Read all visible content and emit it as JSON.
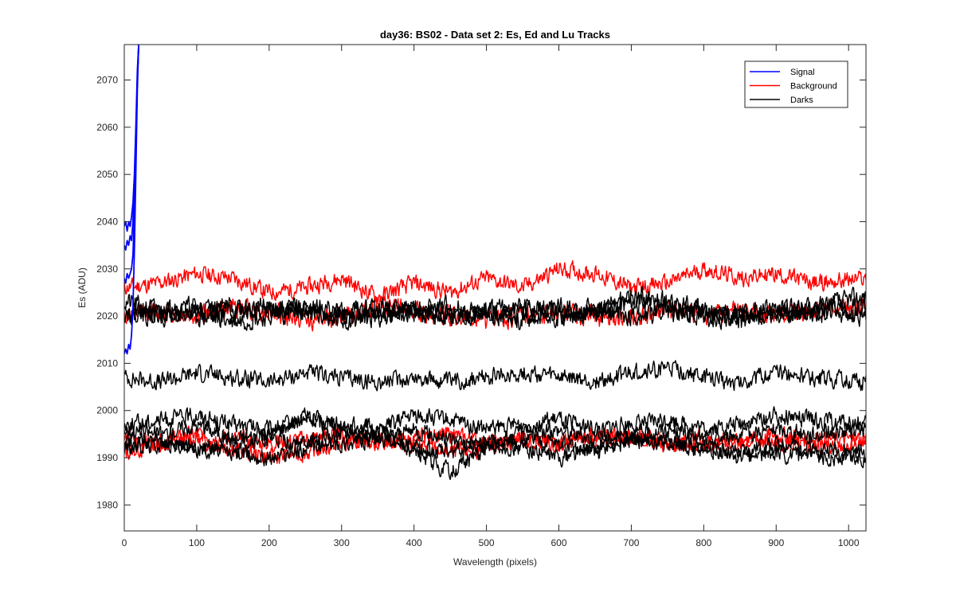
{
  "chart_data": {
    "type": "line",
    "title": "day36: BS02 - Data set 2: Es, Ed and Lu Tracks",
    "xlabel": "Wavelength (pixels)",
    "ylabel": "Es (ADU)",
    "xlim": [
      0,
      1024
    ],
    "ylim": [
      1974.5,
      2077.5
    ],
    "xticks": [
      0,
      100,
      200,
      300,
      400,
      500,
      600,
      700,
      800,
      900,
      1000
    ],
    "yticks": [
      1980,
      1990,
      2000,
      2010,
      2020,
      2030,
      2040,
      2050,
      2060,
      2070
    ],
    "grid": false,
    "legend_position": "top-right",
    "legend": [
      {
        "name": "Signal",
        "color": "#0000ff"
      },
      {
        "name": "Background",
        "color": "#ff0000"
      },
      {
        "name": "Darks",
        "color": "#000000"
      }
    ],
    "series": [
      {
        "name": "Signal",
        "color": "#0000ff",
        "x": [
          0,
          2,
          4,
          6,
          8,
          10,
          12,
          14,
          16,
          18,
          20
        ],
        "y": [
          2035,
          2034,
          2036,
          2035,
          2037,
          2036,
          2040,
          2048,
          2058,
          2070,
          2078
        ]
      },
      {
        "name": "Signal",
        "color": "#0000ff",
        "x": [
          0,
          2,
          4,
          6,
          8,
          10,
          12,
          14,
          16,
          18,
          20
        ],
        "y": [
          2039,
          2040,
          2038,
          2040,
          2039,
          2041,
          2044,
          2050,
          2060,
          2072,
          2078
        ]
      },
      {
        "name": "Signal",
        "color": "#0000ff",
        "x": [
          0,
          2,
          4,
          6,
          8,
          10,
          12,
          14,
          16,
          18,
          20
        ],
        "y": [
          2012,
          2013,
          2012,
          2014,
          2013,
          2016,
          2022,
          2034,
          2050,
          2068,
          2078
        ]
      },
      {
        "name": "Signal",
        "color": "#0000ff",
        "x": [
          0,
          2,
          4,
          6,
          8,
          10,
          12,
          14,
          16,
          18,
          20
        ],
        "y": [
          2028,
          2027,
          2029,
          2028,
          2029,
          2030,
          2033,
          2042,
          2055,
          2070,
          2078
        ]
      },
      {
        "name": "Background",
        "color": "#ff0000",
        "base": 2026.5,
        "amp": 2.5,
        "noise": 1.0,
        "seed": 11,
        "x": [
          0,
          50,
          100,
          150,
          200,
          250,
          300,
          350,
          400,
          450,
          500,
          550,
          600,
          650,
          700,
          750,
          800,
          850,
          900,
          950,
          1024
        ],
        "y": [
          2026,
          2027,
          2029,
          2028,
          2025,
          2026,
          2028,
          2024,
          2027,
          2025,
          2028,
          2026,
          2030,
          2029,
          2026,
          2027,
          2030,
          2028,
          2029,
          2027,
          2028
        ]
      },
      {
        "name": "Background",
        "color": "#ff0000",
        "base": 2021,
        "amp": 1.5,
        "noise": 1.2,
        "seed": 12,
        "x": [
          0,
          50,
          100,
          150,
          200,
          250,
          300,
          350,
          400,
          450,
          500,
          550,
          600,
          650,
          700,
          750,
          800,
          850,
          900,
          950,
          1024
        ],
        "y": [
          2020,
          2021,
          2020,
          2022,
          2021,
          2019,
          2020,
          2022,
          2021,
          2020,
          2019,
          2020,
          2021,
          2020,
          2019,
          2021,
          2020,
          2021,
          2020,
          2021,
          2022
        ]
      },
      {
        "name": "Background",
        "color": "#ff0000",
        "base": 1993,
        "amp": 1.5,
        "noise": 1.0,
        "seed": 13,
        "x": [
          0,
          50,
          100,
          150,
          200,
          250,
          300,
          350,
          400,
          450,
          500,
          550,
          600,
          650,
          700,
          750,
          800,
          850,
          900,
          950,
          1024
        ],
        "y": [
          1991,
          1993,
          1994,
          1992,
          1990,
          1991,
          1993,
          1994,
          1993,
          1991,
          1992,
          1994,
          1993,
          1995,
          1994,
          1993,
          1992,
          1994,
          1993,
          1992,
          1993
        ]
      },
      {
        "name": "Background",
        "color": "#ff0000",
        "base": 1993,
        "amp": 1.5,
        "noise": 1.0,
        "seed": 14,
        "x": [
          0,
          50,
          100,
          150,
          200,
          250,
          300,
          350,
          400,
          450,
          500,
          550,
          600,
          650,
          700,
          750,
          800,
          850,
          900,
          950,
          1024
        ],
        "y": [
          1994,
          1993,
          1995,
          1994,
          1993,
          1994,
          1995,
          1993,
          1994,
          1995,
          1993,
          1994,
          1993,
          1994,
          1995,
          1993,
          1994,
          1993,
          1995,
          1994,
          1994
        ]
      },
      {
        "name": "Darks",
        "color": "#000000",
        "base": 2021,
        "amp": 1.2,
        "noise": 1.2,
        "seed": 21,
        "x": [
          0,
          50,
          100,
          150,
          200,
          250,
          300,
          350,
          400,
          450,
          500,
          550,
          600,
          650,
          700,
          750,
          800,
          850,
          900,
          950,
          1024
        ],
        "y": [
          2023,
          2021,
          2022,
          2021,
          2022,
          2021,
          2020,
          2022,
          2021,
          2020,
          2021,
          2022,
          2020,
          2021,
          2023,
          2022,
          2021,
          2020,
          2021,
          2022,
          2024
        ]
      },
      {
        "name": "Darks",
        "color": "#000000",
        "base": 2021,
        "amp": 1.2,
        "noise": 1.2,
        "seed": 22,
        "x": [
          0,
          50,
          100,
          150,
          200,
          250,
          300,
          350,
          400,
          450,
          500,
          550,
          600,
          650,
          700,
          750,
          800,
          850,
          900,
          950,
          1024
        ],
        "y": [
          2021,
          2020,
          2021,
          2022,
          2021,
          2022,
          2021,
          2020,
          2021,
          2022,
          2020,
          2021,
          2022,
          2021,
          2024,
          2023,
          2021,
          2020,
          2021,
          2021,
          2022
        ]
      },
      {
        "name": "Darks",
        "color": "#000000",
        "base": 2020,
        "amp": 1.2,
        "noise": 1.2,
        "seed": 23,
        "x": [
          0,
          50,
          100,
          150,
          200,
          250,
          300,
          350,
          400,
          450,
          500,
          550,
          600,
          650,
          700,
          750,
          800,
          850,
          900,
          950,
          1024
        ],
        "y": [
          2020,
          2021,
          2020,
          2019,
          2020,
          2021,
          2019,
          2020,
          2021,
          2020,
          2021,
          2019,
          2020,
          2021,
          2020,
          2021,
          2020,
          2019,
          2020,
          2021,
          2020
        ]
      },
      {
        "name": "Darks",
        "color": "#000000",
        "base": 2007,
        "amp": 1.3,
        "noise": 1.0,
        "seed": 24,
        "x": [
          0,
          50,
          100,
          150,
          200,
          250,
          300,
          350,
          400,
          450,
          500,
          550,
          600,
          650,
          700,
          750,
          800,
          850,
          900,
          950,
          1024
        ],
        "y": [
          2007,
          2006,
          2008,
          2007,
          2006,
          2008,
          2007,
          2006,
          2007,
          2006,
          2007,
          2008,
          2007,
          2006,
          2008,
          2009,
          2007,
          2006,
          2008,
          2007,
          2006
        ]
      },
      {
        "name": "Darks",
        "color": "#000000",
        "base": 1997,
        "amp": 1.8,
        "noise": 1.0,
        "seed": 25,
        "x": [
          0,
          50,
          100,
          150,
          200,
          250,
          300,
          350,
          400,
          450,
          500,
          550,
          600,
          650,
          700,
          750,
          800,
          850,
          900,
          950,
          1024
        ],
        "y": [
          1997,
          1998,
          1999,
          1997,
          1996,
          1998,
          1997,
          1996,
          1999,
          1998,
          1996,
          1997,
          1998,
          1996,
          1997,
          1998,
          1996,
          1997,
          1999,
          1998,
          1997
        ]
      },
      {
        "name": "Darks",
        "color": "#000000",
        "base": 1995,
        "amp": 1.8,
        "noise": 1.0,
        "seed": 26,
        "x": [
          0,
          50,
          100,
          150,
          200,
          250,
          300,
          350,
          400,
          450,
          500,
          550,
          600,
          650,
          700,
          750,
          800,
          850,
          900,
          950,
          1024
        ],
        "y": [
          1996,
          1995,
          1997,
          1994,
          1995,
          1999,
          1996,
          1994,
          1996,
          1994,
          1993,
          1995,
          1996,
          1994,
          1995,
          1996,
          1994,
          1995,
          1996,
          1995,
          1996
        ]
      },
      {
        "name": "Darks",
        "color": "#000000",
        "base": 1993,
        "amp": 2.5,
        "noise": 1.0,
        "seed": 27,
        "x": [
          0,
          50,
          100,
          150,
          200,
          250,
          300,
          350,
          400,
          450,
          500,
          550,
          600,
          650,
          700,
          750,
          800,
          850,
          900,
          950,
          1024
        ],
        "y": [
          1994,
          1993,
          1992,
          1993,
          1994,
          1993,
          1995,
          1996,
          1991,
          1987,
          1992,
          1994,
          1993,
          1991,
          1994,
          1993,
          1992,
          1991,
          1993,
          1992,
          1991
        ]
      },
      {
        "name": "Darks",
        "color": "#000000",
        "base": 1991,
        "amp": 2.0,
        "noise": 1.0,
        "seed": 28,
        "x": [
          0,
          50,
          100,
          150,
          200,
          250,
          300,
          350,
          400,
          450,
          500,
          550,
          600,
          650,
          700,
          750,
          800,
          850,
          900,
          950,
          1024
        ],
        "y": [
          1992,
          1993,
          1992,
          1991,
          1990,
          1992,
          1993,
          1994,
          1992,
          1991,
          1993,
          1992,
          1990,
          1992,
          1994,
          1993,
          1992,
          1990,
          1991,
          1990,
          1990
        ]
      }
    ]
  }
}
